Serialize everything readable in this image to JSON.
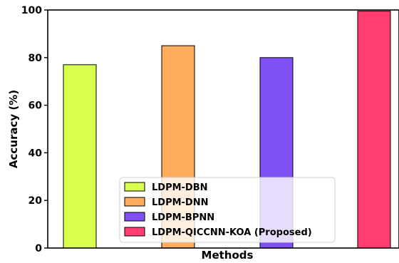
{
  "chart_data": {
    "type": "bar",
    "categories": [
      "LDPM-DBN",
      "LDPM-DNN",
      "LDPM-BPNN",
      "LDPM-QICCNN-KOA (Proposed)"
    ],
    "values": [
      77,
      85,
      80,
      99.5
    ],
    "colors": [
      "#d9ff4f",
      "#ffad5c",
      "#8050f7",
      "#ff3d73"
    ],
    "xlabel": "Methods",
    "ylabel": "Accuracy (%)",
    "ylim": [
      0,
      100
    ],
    "yticks": [
      "0",
      "20",
      "40",
      "60",
      "80",
      "100"
    ],
    "grid": false,
    "legend": {
      "placement": "lower-center",
      "entries": [
        "LDPM-DBN",
        "LDPM-DNN",
        "LDPM-BPNN",
        "LDPM-QICCNN-KOA (Proposed)"
      ]
    }
  }
}
